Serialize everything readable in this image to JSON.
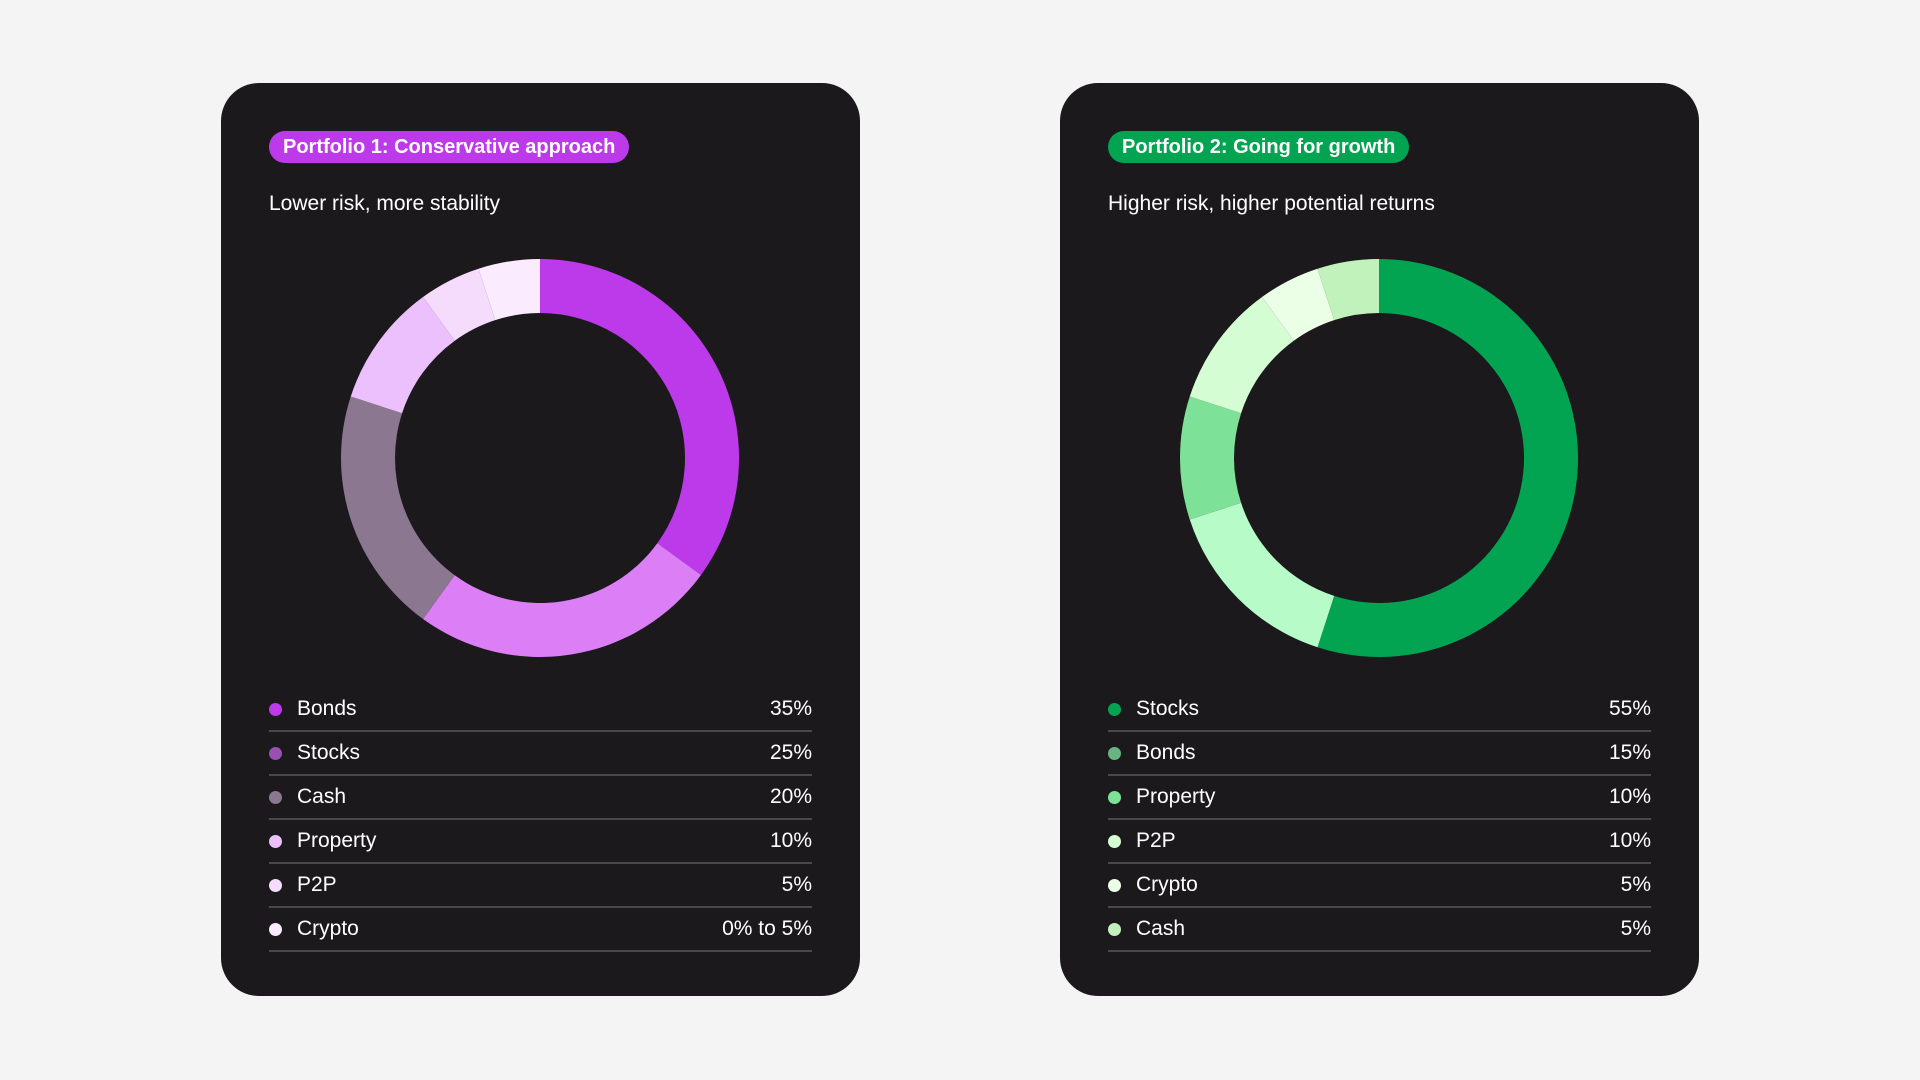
{
  "chart_data": [
    {
      "type": "pie",
      "title": "Portfolio 1: Conservative approach",
      "subtitle": "Lower risk, more stability",
      "accent_color": "#bd3aea",
      "legend_position": "bottom",
      "categories": [
        "Bonds",
        "Stocks",
        "Cash",
        "Property",
        "P2P",
        "Crypto"
      ],
      "values": [
        35,
        25,
        20,
        10,
        5,
        5
      ],
      "value_labels": [
        "35%",
        "25%",
        "20%",
        "10%",
        "5%",
        "0% to 5%"
      ],
      "colors": [
        "#bd3aea",
        "#dc7ff7",
        "#8c7790",
        "#ecc0fc",
        "#f5dcfd",
        "#faecfe"
      ],
      "legend_dot_colors": [
        "#bd3aea",
        "#9a4fb3",
        "#8c7790",
        "#ecc0fc",
        "#f5dcfd",
        "#faecfe"
      ]
    },
    {
      "type": "pie",
      "title": "Portfolio 2: Going for growth",
      "subtitle": "Higher risk, higher potential returns",
      "accent_color": "#02a452",
      "legend_position": "bottom",
      "categories": [
        "Stocks",
        "Bonds",
        "Property",
        "P2P",
        "Crypto",
        "Cash"
      ],
      "values": [
        55,
        15,
        10,
        10,
        5,
        5
      ],
      "value_labels": [
        "55%",
        "15%",
        "10%",
        "10%",
        "5%",
        "5%"
      ],
      "colors": [
        "#02a452",
        "#b6fbc8",
        "#7de298",
        "#d5fdd4",
        "#ebfee6",
        "#c2f2bc"
      ],
      "legend_dot_colors": [
        "#02a452",
        "#6ab383",
        "#7de298",
        "#d5fdd4",
        "#ebfee6",
        "#c2f2bc"
      ]
    }
  ]
}
